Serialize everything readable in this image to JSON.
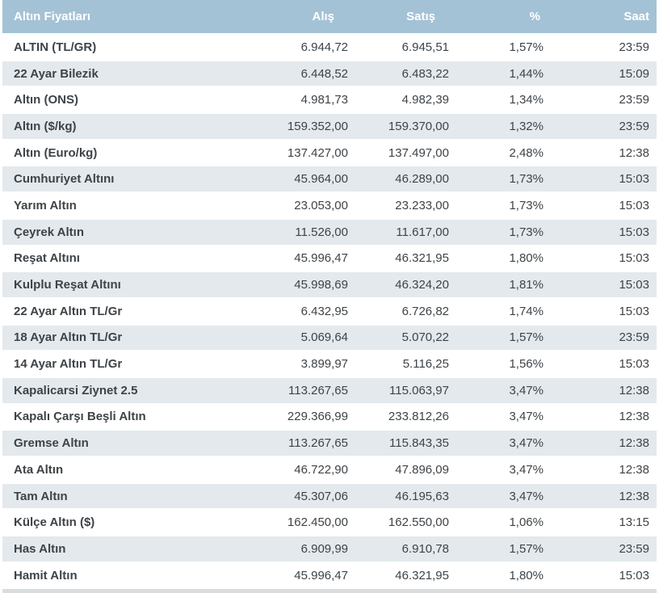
{
  "colors": {
    "header_bg": "#a4c2d5",
    "header_text": "#ffffff",
    "row_alt_bg": "#e3e9ed",
    "row_bg": "#ffffff",
    "text": "#3e4347",
    "footer_strip": "#d9dde0"
  },
  "table": {
    "columns": {
      "name": "Altın Fiyatları",
      "buy": "Alış",
      "sell": "Satış",
      "pct": "%",
      "time": "Saat"
    },
    "rows": [
      {
        "name": "ALTIN (TL/GR)",
        "buy": "6.944,72",
        "sell": "6.945,51",
        "pct": "1,57%",
        "time": "23:59"
      },
      {
        "name": "22 Ayar Bilezik",
        "buy": "6.448,52",
        "sell": "6.483,22",
        "pct": "1,44%",
        "time": "15:09"
      },
      {
        "name": "Altın (ONS)",
        "buy": "4.981,73",
        "sell": "4.982,39",
        "pct": "1,34%",
        "time": "23:59"
      },
      {
        "name": "Altın ($/kg)",
        "buy": "159.352,00",
        "sell": "159.370,00",
        "pct": "1,32%",
        "time": "23:59"
      },
      {
        "name": "Altın (Euro/kg)",
        "buy": "137.427,00",
        "sell": "137.497,00",
        "pct": "2,48%",
        "time": "12:38"
      },
      {
        "name": "Cumhuriyet Altını",
        "buy": "45.964,00",
        "sell": "46.289,00",
        "pct": "1,73%",
        "time": "15:03"
      },
      {
        "name": "Yarım Altın",
        "buy": "23.053,00",
        "sell": "23.233,00",
        "pct": "1,73%",
        "time": "15:03"
      },
      {
        "name": "Çeyrek Altın",
        "buy": "11.526,00",
        "sell": "11.617,00",
        "pct": "1,73%",
        "time": "15:03"
      },
      {
        "name": "Reşat Altını",
        "buy": "45.996,47",
        "sell": "46.321,95",
        "pct": "1,80%",
        "time": "15:03"
      },
      {
        "name": "Kulplu Reşat Altını",
        "buy": "45.998,69",
        "sell": "46.324,20",
        "pct": "1,81%",
        "time": "15:03"
      },
      {
        "name": "22 Ayar Altın TL/Gr",
        "buy": "6.432,95",
        "sell": "6.726,82",
        "pct": "1,74%",
        "time": "15:03"
      },
      {
        "name": "18 Ayar Altın TL/Gr",
        "buy": "5.069,64",
        "sell": "5.070,22",
        "pct": "1,57%",
        "time": "23:59"
      },
      {
        "name": "14 Ayar Altın TL/Gr",
        "buy": "3.899,97",
        "sell": "5.116,25",
        "pct": "1,56%",
        "time": "15:03"
      },
      {
        "name": "Kapalicarsi Ziynet 2.5",
        "buy": "113.267,65",
        "sell": "115.063,97",
        "pct": "3,47%",
        "time": "12:38"
      },
      {
        "name": "Kapalı Çarşı Beşli Altın",
        "buy": "229.366,99",
        "sell": "233.812,26",
        "pct": "3,47%",
        "time": "12:38"
      },
      {
        "name": "Gremse Altın",
        "buy": "113.267,65",
        "sell": "115.843,35",
        "pct": "3,47%",
        "time": "12:38"
      },
      {
        "name": "Ata Altın",
        "buy": "46.722,90",
        "sell": "47.896,09",
        "pct": "3,47%",
        "time": "12:38"
      },
      {
        "name": "Tam Altın",
        "buy": "45.307,06",
        "sell": "46.195,63",
        "pct": "3,47%",
        "time": "12:38"
      },
      {
        "name": "Külçe Altın ($)",
        "buy": "162.450,00",
        "sell": "162.550,00",
        "pct": "1,06%",
        "time": "13:15"
      },
      {
        "name": "Has Altın",
        "buy": "6.909,99",
        "sell": "6.910,78",
        "pct": "1,57%",
        "time": "23:59"
      },
      {
        "name": "Hamit Altın",
        "buy": "45.996,47",
        "sell": "46.321,95",
        "pct": "1,80%",
        "time": "15:03"
      }
    ]
  }
}
